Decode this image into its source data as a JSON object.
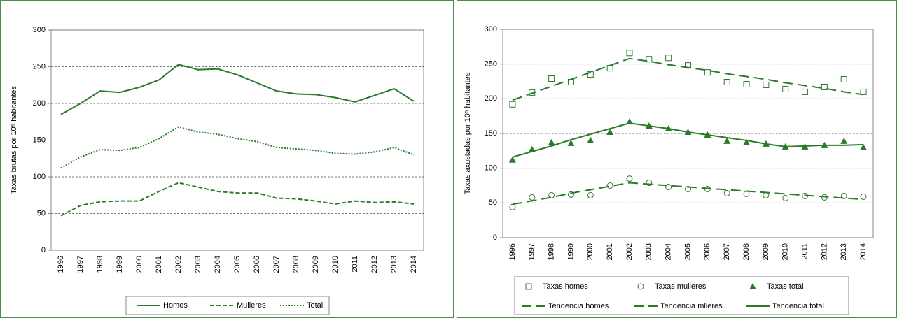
{
  "chart_data": [
    {
      "type": "line",
      "y_label": "Taxas brutas por 10⁵ habitantes",
      "categories": [
        "1996",
        "1997",
        "1998",
        "1999",
        "2000",
        "2001",
        "2002",
        "2003",
        "2004",
        "2005",
        "2006",
        "2007",
        "2008",
        "2009",
        "2010",
        "2011",
        "2012",
        "2013",
        "2014"
      ],
      "ylim": [
        0,
        300
      ],
      "yticks": [
        0,
        50,
        100,
        150,
        200,
        250,
        300
      ],
      "grid": true,
      "series": [
        {
          "name": "Homes",
          "color": "#2a7a2a",
          "line": "solid",
          "values": [
            185,
            200,
            217,
            215,
            222,
            232,
            253,
            246,
            247,
            239,
            228,
            217,
            213,
            212,
            208,
            202,
            211,
            220,
            203
          ]
        },
        {
          "name": "Mulleres",
          "color": "#2a7a2a",
          "line": "dashed",
          "values": [
            47,
            61,
            66,
            67,
            67,
            80,
            92,
            86,
            80,
            78,
            78,
            71,
            70,
            67,
            63,
            67,
            65,
            66,
            63
          ]
        },
        {
          "name": "Total",
          "color": "#2a7a2a",
          "line": "dotted",
          "values": [
            112,
            127,
            137,
            136,
            140,
            152,
            168,
            161,
            158,
            152,
            148,
            140,
            138,
            136,
            132,
            131,
            134,
            140,
            130
          ]
        }
      ]
    },
    {
      "type": "line",
      "y_label": "Taxas axustadas por 10⁵ habitantes",
      "categories": [
        "1996",
        "1997",
        "1998",
        "1999",
        "2000",
        "2001",
        "2002",
        "2003",
        "2004",
        "2005",
        "2006",
        "2007",
        "2008",
        "2009",
        "2010",
        "2011",
        "2012",
        "2013",
        "2014"
      ],
      "ylim": [
        0,
        300
      ],
      "yticks": [
        0,
        50,
        100,
        150,
        200,
        250,
        300
      ],
      "grid": true,
      "series": [
        {
          "name": "Taxas homes",
          "color": "#2a7a2a",
          "marker": "square",
          "values": [
            192,
            209,
            229,
            224,
            235,
            244,
            266,
            257,
            259,
            248,
            238,
            224,
            221,
            220,
            214,
            210,
            217,
            228,
            210
          ]
        },
        {
          "name": "Taxas mulleres",
          "color": "#2a7a2a",
          "marker": "circle",
          "values": [
            44,
            58,
            61,
            62,
            61,
            75,
            85,
            79,
            73,
            70,
            70,
            64,
            63,
            61,
            57,
            60,
            58,
            60,
            59
          ]
        },
        {
          "name": "Taxas total",
          "color": "#2a7a2a",
          "marker": "triangle",
          "values": [
            112,
            127,
            137,
            136,
            140,
            152,
            167,
            161,
            157,
            152,
            148,
            139,
            137,
            135,
            131,
            131,
            133,
            139,
            130
          ]
        },
        {
          "name": "Tendencia homes",
          "color": "#2a7a2a",
          "line": "longdash",
          "values": [
            198,
            208,
            218,
            228,
            238,
            248,
            258,
            254,
            249,
            245,
            241,
            236,
            232,
            228,
            223,
            219,
            215,
            210,
            206
          ]
        },
        {
          "name": "Tendencia mlleres",
          "color": "#2a7a2a",
          "line": "longdash",
          "values": [
            48,
            53,
            58,
            64,
            69,
            74,
            79,
            77,
            75,
            73,
            71,
            69,
            67,
            65,
            63,
            61,
            59,
            57,
            55
          ]
        },
        {
          "name": "Tendencia total",
          "color": "#2a7a2a",
          "line": "solid",
          "values": [
            116,
            124,
            132,
            141,
            149,
            157,
            165,
            161,
            157,
            152,
            148,
            144,
            140,
            135,
            131,
            132,
            133,
            133,
            134
          ]
        }
      ]
    }
  ]
}
